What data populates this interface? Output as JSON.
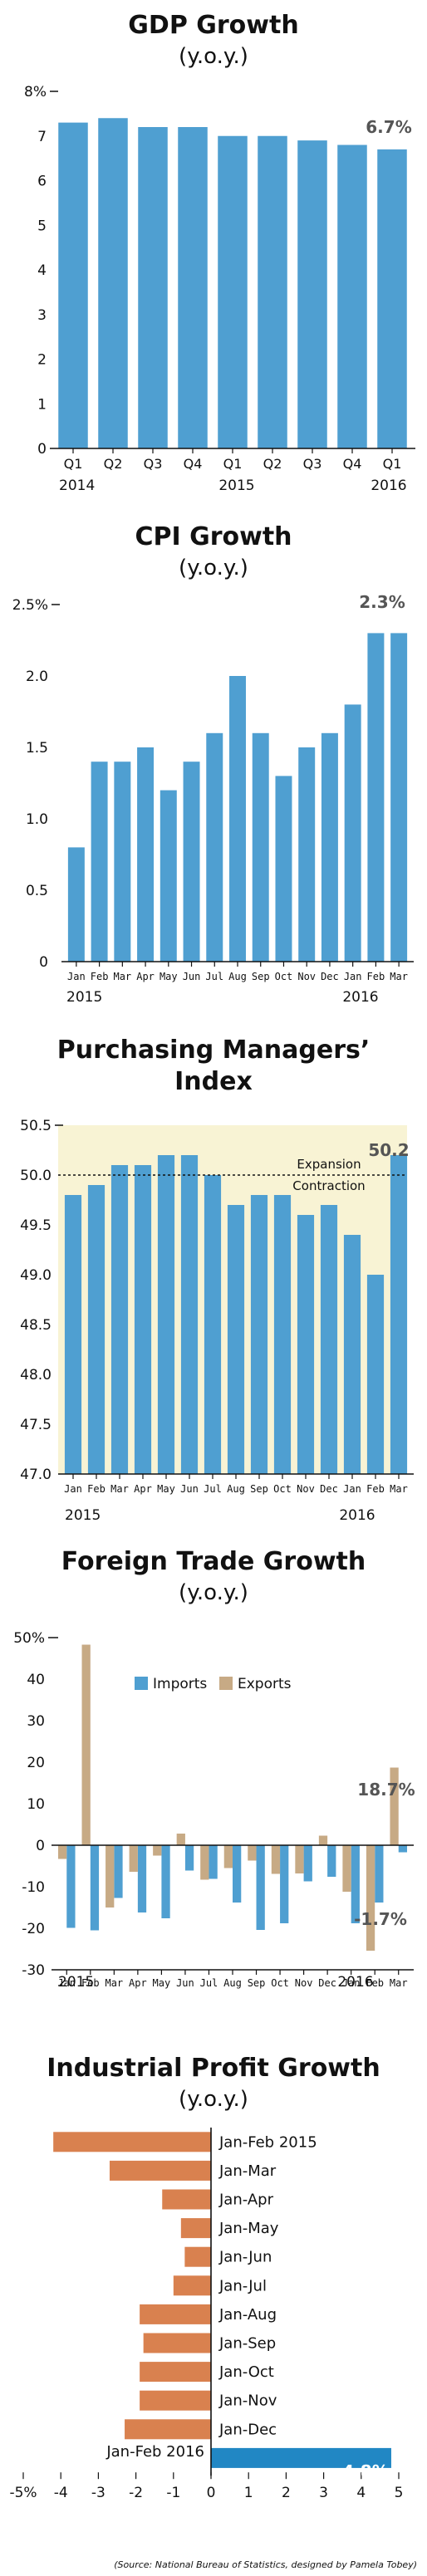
{
  "colors": {
    "blue": "#4f9fd1",
    "tan": "#c7aa85",
    "orange": "#d9814f",
    "highlight": "#2187c4",
    "pmi_bg": "#f8f3d4"
  },
  "chart_data": [
    {
      "type": "bar",
      "title": "GDP Growth",
      "subtitle": "(y.o.y.)",
      "categories": [
        "Q1",
        "Q2",
        "Q3",
        "Q4",
        "Q1",
        "Q2",
        "Q3",
        "Q4",
        "Q1"
      ],
      "year_labels": [
        "2014",
        "2015",
        "2016"
      ],
      "values": [
        7.3,
        7.4,
        7.2,
        7.2,
        7.0,
        7.0,
        6.9,
        6.8,
        6.7
      ],
      "ylim": [
        0,
        8
      ],
      "yticks": [
        "8%",
        "7",
        "6",
        "5",
        "4",
        "3",
        "2",
        "1",
        "0"
      ],
      "callout": "6.7%"
    },
    {
      "type": "bar",
      "title": "CPI Growth",
      "subtitle": "(y.o.y.)",
      "categories": [
        "Jan",
        "Feb",
        "Mar",
        "Apr",
        "May",
        "Jun",
        "Jul",
        "Aug",
        "Sep",
        "Oct",
        "Nov",
        "Dec",
        "Jan",
        "Feb",
        "Mar"
      ],
      "year_labels": [
        "2015",
        "2016"
      ],
      "values": [
        0.8,
        1.4,
        1.4,
        1.5,
        1.2,
        1.4,
        1.6,
        2.0,
        1.6,
        1.3,
        1.5,
        1.6,
        1.8,
        2.3,
        2.3
      ],
      "ylim": [
        0,
        2.5
      ],
      "yticks": [
        "2.5%",
        "2.0",
        "1.5",
        "1.0",
        "0.5",
        "0"
      ],
      "callout": "2.3%"
    },
    {
      "type": "bar",
      "title": "Purchasing Managers’",
      "title_line2": "Index",
      "categories": [
        "Jan",
        "Feb",
        "Mar",
        "Apr",
        "May",
        "Jun",
        "Jul",
        "Aug",
        "Sep",
        "Oct",
        "Nov",
        "Dec",
        "Jan",
        "Feb",
        "Mar"
      ],
      "year_labels": [
        "2015",
        "2016"
      ],
      "values": [
        49.8,
        49.9,
        50.1,
        50.1,
        50.2,
        50.2,
        50.0,
        49.7,
        49.8,
        49.8,
        49.6,
        49.7,
        49.4,
        49.0,
        50.2
      ],
      "ylim": [
        47.0,
        50.5
      ],
      "yticks": [
        "50.5",
        "50.0",
        "49.5",
        "49.0",
        "48.5",
        "48.0",
        "47.5",
        "47.0"
      ],
      "threshold": 50.0,
      "annotations": [
        "Expansion",
        "Contraction"
      ],
      "callout": "50.2"
    },
    {
      "type": "bar",
      "title": "Foreign Trade Growth",
      "subtitle": "(y.o.y.)",
      "categories": [
        "Jan",
        "Feb",
        "Mar",
        "Apr",
        "May",
        "Jun",
        "Jul",
        "Aug",
        "Sep",
        "Oct",
        "Nov",
        "Dec",
        "Jan",
        "Feb",
        "Mar"
      ],
      "year_labels": [
        "2015",
        "2016"
      ],
      "series": [
        {
          "name": "Imports",
          "values": [
            -19.9,
            -20.5,
            -12.7,
            -16.2,
            -17.6,
            -6.1,
            -8.1,
            -13.8,
            -20.4,
            -18.8,
            -8.7,
            -7.6,
            -18.8,
            -13.8,
            -1.7
          ]
        },
        {
          "name": "Exports",
          "values": [
            -3.3,
            48.3,
            -15.0,
            -6.4,
            -2.5,
            2.8,
            -8.3,
            -5.5,
            -3.7,
            -6.9,
            -6.8,
            2.3,
            -11.2,
            -25.4,
            18.7
          ]
        }
      ],
      "ylim": [
        -30,
        50
      ],
      "yticks": [
        "50%",
        "40",
        "30",
        "20",
        "10",
        "0",
        "-10",
        "-20",
        "-30"
      ],
      "callouts": [
        "18.7%",
        "-1.7%"
      ]
    },
    {
      "type": "bar",
      "orientation": "horizontal",
      "title": "Industrial Profit Growth",
      "subtitle": "(y.o.y.)",
      "categories": [
        "Jan-Feb 2015",
        "Jan-Mar",
        "Jan-Apr",
        "Jan-May",
        "Jan-Jun",
        "Jan-Jul",
        "Jan-Aug",
        "Jan-Sep",
        "Jan-Oct",
        "Jan-Nov",
        "Jan-Dec",
        "Jan-Feb 2016"
      ],
      "values": [
        -4.2,
        -2.7,
        -1.3,
        -0.8,
        -0.7,
        -1.0,
        -1.9,
        -1.8,
        -1.9,
        -1.9,
        -2.3,
        4.8
      ],
      "xlim": [
        -5,
        5
      ],
      "xticks": [
        "-5%",
        "-4",
        "-3",
        "-2",
        "-1",
        "0",
        "1",
        "2",
        "3",
        "4",
        "5"
      ],
      "callout": "4.8%"
    }
  ],
  "source": "(Source: National Bureau of Statistics, designed by Pamela Tobey)"
}
